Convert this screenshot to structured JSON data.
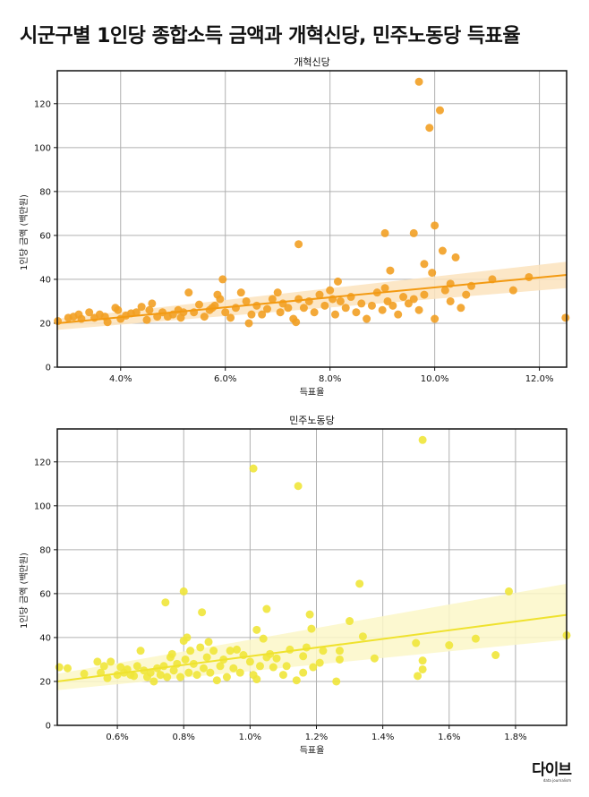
{
  "title": "시군구별 1인당 종합소득 금액과 개혁신당, 민주노동당 득표율",
  "logo": {
    "main": "다이브",
    "sub": "data journalism"
  },
  "chart_data": [
    {
      "type": "scatter",
      "title": "개혁신당",
      "xlabel": "득표율",
      "ylabel": "1인당 금액 (백만원)",
      "xlim": [
        2.79,
        12.52
      ],
      "ylim": [
        0,
        135
      ],
      "xticks": [
        4,
        6,
        8,
        10,
        12
      ],
      "xtick_labels": [
        "4.0%",
        "6.0%",
        "8.0%",
        "10.0%",
        "12.0%"
      ],
      "yticks": [
        0,
        20,
        40,
        60,
        80,
        100,
        120
      ],
      "ytick_labels": [
        "0",
        "20",
        "40",
        "60",
        "80",
        "100",
        "120"
      ],
      "grid": true,
      "color": "#f2a024",
      "line_color": "#f39a12",
      "band_color": "#fbe3bd",
      "regression": {
        "x": [
          2.79,
          12.52
        ],
        "y": [
          20,
          42
        ],
        "ci_low": [
          17,
          36
        ],
        "ci_high": [
          22,
          48
        ]
      },
      "points": [
        [
          2.8,
          21
        ],
        [
          3.0,
          22.5
        ],
        [
          3.1,
          23
        ],
        [
          3.2,
          24
        ],
        [
          3.25,
          22
        ],
        [
          3.4,
          25
        ],
        [
          3.5,
          22.5
        ],
        [
          3.6,
          24
        ],
        [
          3.7,
          23
        ],
        [
          3.75,
          20.5
        ],
        [
          3.9,
          27
        ],
        [
          3.95,
          26
        ],
        [
          4.0,
          22
        ],
        [
          4.1,
          23.5
        ],
        [
          4.2,
          24.5
        ],
        [
          4.3,
          25
        ],
        [
          4.4,
          27.5
        ],
        [
          4.5,
          21.5
        ],
        [
          4.55,
          26
        ],
        [
          4.6,
          29
        ],
        [
          4.7,
          23
        ],
        [
          4.8,
          25
        ],
        [
          4.9,
          23
        ],
        [
          5.0,
          24
        ],
        [
          5.1,
          26
        ],
        [
          5.15,
          22.5
        ],
        [
          5.2,
          25
        ],
        [
          5.3,
          34
        ],
        [
          5.4,
          25
        ],
        [
          5.5,
          28.5
        ],
        [
          5.6,
          23
        ],
        [
          5.7,
          26
        ],
        [
          5.75,
          27
        ],
        [
          5.8,
          28
        ],
        [
          5.85,
          33
        ],
        [
          5.9,
          31
        ],
        [
          5.95,
          40
        ],
        [
          6.0,
          25
        ],
        [
          6.1,
          22.5
        ],
        [
          6.2,
          27
        ],
        [
          6.3,
          34
        ],
        [
          6.4,
          30
        ],
        [
          6.45,
          20
        ],
        [
          6.5,
          24
        ],
        [
          6.6,
          28
        ],
        [
          6.7,
          24
        ],
        [
          6.8,
          26.5
        ],
        [
          6.9,
          31
        ],
        [
          7.0,
          34
        ],
        [
          7.05,
          25
        ],
        [
          7.1,
          29
        ],
        [
          7.2,
          27
        ],
        [
          7.3,
          22
        ],
        [
          7.35,
          20.5
        ],
        [
          7.4,
          31
        ],
        [
          7.5,
          27
        ],
        [
          7.6,
          30
        ],
        [
          7.7,
          25
        ],
        [
          7.8,
          33
        ],
        [
          7.9,
          28
        ],
        [
          8.0,
          35
        ],
        [
          8.05,
          31
        ],
        [
          8.1,
          24
        ],
        [
          8.15,
          39
        ],
        [
          8.2,
          30
        ],
        [
          8.3,
          27
        ],
        [
          8.4,
          32
        ],
        [
          8.5,
          25
        ],
        [
          8.6,
          29
        ],
        [
          8.7,
          22
        ],
        [
          8.8,
          28
        ],
        [
          8.9,
          34
        ],
        [
          9.0,
          26
        ],
        [
          9.05,
          36
        ],
        [
          9.1,
          30
        ],
        [
          9.2,
          28
        ],
        [
          9.3,
          24
        ],
        [
          9.4,
          32
        ],
        [
          9.5,
          29
        ],
        [
          9.6,
          31
        ],
        [
          9.7,
          26
        ],
        [
          9.8,
          33
        ],
        [
          10.2,
          35
        ],
        [
          10.3,
          30
        ],
        [
          10.5,
          27
        ],
        [
          10.6,
          33
        ],
        [
          10.7,
          37
        ],
        [
          10.3,
          38
        ],
        [
          9.7,
          130
        ],
        [
          9.9,
          109
        ],
        [
          10.1,
          117
        ],
        [
          7.4,
          56
        ],
        [
          9.05,
          61
        ],
        [
          9.6,
          61
        ],
        [
          10.0,
          64.5
        ],
        [
          10.15,
          53
        ],
        [
          10.4,
          50
        ],
        [
          9.8,
          47
        ],
        [
          9.15,
          44
        ],
        [
          12.5,
          22.5
        ],
        [
          11.8,
          41
        ],
        [
          11.1,
          40
        ],
        [
          11.5,
          35
        ],
        [
          10.0,
          22
        ],
        [
          9.95,
          43
        ]
      ]
    },
    {
      "type": "scatter",
      "title": "민주노동당",
      "xlabel": "득표율",
      "ylabel": "1인당 금액 (백만원)",
      "xlim": [
        0.419,
        1.954
      ],
      "ylim": [
        0,
        135
      ],
      "xticks": [
        0.6,
        0.8,
        1.0,
        1.2,
        1.4,
        1.6,
        1.8
      ],
      "xtick_labels": [
        "0.6%",
        "0.8%",
        "1.0%",
        "1.2%",
        "1.4%",
        "1.6%",
        "1.8%"
      ],
      "yticks": [
        0,
        20,
        40,
        60,
        80,
        100,
        120
      ],
      "ytick_labels": [
        "0",
        "20",
        "40",
        "60",
        "80",
        "100",
        "120"
      ],
      "grid": true,
      "color": "#f0e53a",
      "line_color": "#efe22e",
      "band_color": "#fbf7c8",
      "regression": {
        "x": [
          0.419,
          1.954
        ],
        "y": [
          20,
          50.3
        ],
        "ci_low": [
          16,
          39
        ],
        "ci_high": [
          23.5,
          64.5
        ]
      },
      "points": [
        [
          0.5,
          23.5
        ],
        [
          0.54,
          29
        ],
        [
          0.55,
          24
        ],
        [
          0.56,
          27
        ],
        [
          0.57,
          21.5
        ],
        [
          0.58,
          29
        ],
        [
          0.6,
          23
        ],
        [
          0.61,
          26.5
        ],
        [
          0.62,
          24
        ],
        [
          0.63,
          25.5
        ],
        [
          0.64,
          23
        ],
        [
          0.65,
          22.5
        ],
        [
          0.66,
          27
        ],
        [
          0.67,
          34
        ],
        [
          0.68,
          25
        ],
        [
          0.69,
          22
        ],
        [
          0.7,
          24
        ],
        [
          0.71,
          20
        ],
        [
          0.72,
          26
        ],
        [
          0.73,
          23
        ],
        [
          0.74,
          27
        ],
        [
          0.75,
          22
        ],
        [
          0.76,
          31
        ],
        [
          0.765,
          32.5
        ],
        [
          0.77,
          25
        ],
        [
          0.78,
          28
        ],
        [
          0.79,
          22
        ],
        [
          0.8,
          38.5
        ],
        [
          0.805,
          30
        ],
        [
          0.81,
          40
        ],
        [
          0.815,
          24
        ],
        [
          0.82,
          34
        ],
        [
          0.83,
          28
        ],
        [
          0.84,
          23
        ],
        [
          0.85,
          35.5
        ],
        [
          0.86,
          26
        ],
        [
          0.87,
          31
        ],
        [
          0.875,
          38
        ],
        [
          0.88,
          24
        ],
        [
          0.89,
          34
        ],
        [
          0.9,
          20.5
        ],
        [
          0.91,
          27
        ],
        [
          0.92,
          30
        ],
        [
          0.93,
          22
        ],
        [
          0.94,
          34
        ],
        [
          0.95,
          26
        ],
        [
          0.96,
          34.5
        ],
        [
          0.97,
          24
        ],
        [
          0.98,
          32
        ],
        [
          1.0,
          29
        ],
        [
          1.01,
          23
        ],
        [
          1.02,
          21
        ],
        [
          1.03,
          27
        ],
        [
          1.04,
          39.5
        ],
        [
          1.05,
          31
        ],
        [
          1.06,
          32.5
        ],
        [
          1.07,
          26.5
        ],
        [
          1.08,
          30.5
        ],
        [
          1.1,
          23
        ],
        [
          1.11,
          27
        ],
        [
          1.12,
          34.5
        ],
        [
          1.16,
          24
        ],
        [
          1.16,
          31.5
        ],
        [
          1.17,
          35.5
        ],
        [
          1.19,
          26.5
        ],
        [
          1.21,
          28.5
        ],
        [
          1.22,
          34
        ],
        [
          1.27,
          34
        ],
        [
          1.27,
          30
        ],
        [
          1.52,
          130
        ],
        [
          1.01,
          117
        ],
        [
          1.145,
          109
        ],
        [
          1.33,
          64.5
        ],
        [
          0.8,
          61
        ],
        [
          1.78,
          61
        ],
        [
          0.745,
          56
        ],
        [
          1.05,
          53
        ],
        [
          0.855,
          51.5
        ],
        [
          1.18,
          50.5
        ],
        [
          1.3,
          47.5
        ],
        [
          1.02,
          43.5
        ],
        [
          1.185,
          44
        ],
        [
          1.34,
          40.5
        ],
        [
          1.68,
          39.5
        ],
        [
          1.5,
          37.5
        ],
        [
          1.6,
          36.5
        ],
        [
          1.74,
          32
        ],
        [
          1.375,
          30.5
        ],
        [
          1.52,
          29.5
        ],
        [
          1.52,
          25.5
        ],
        [
          1.505,
          22.5
        ],
        [
          1.955,
          41
        ],
        [
          1.26,
          20
        ],
        [
          1.14,
          20.5
        ],
        [
          0.425,
          26.5
        ],
        [
          0.45,
          26
        ]
      ]
    }
  ]
}
